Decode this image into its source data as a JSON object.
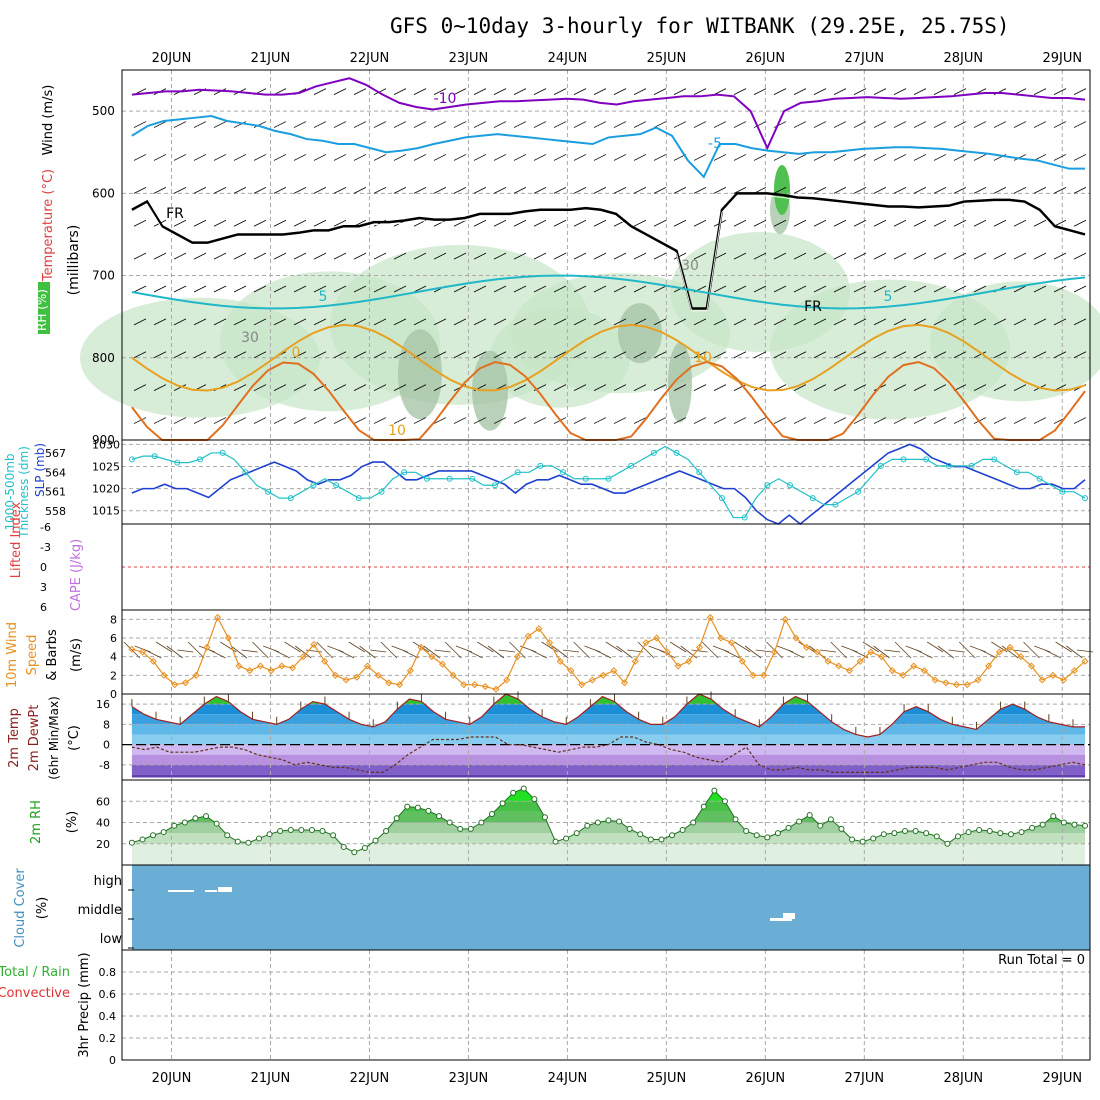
{
  "title": "GFS 0~10day 3-hourly for WITBANK (29.25E, 25.75S)",
  "x_axis": {
    "tick_labels": [
      "20JUN",
      "21JUN",
      "22JUN",
      "23JUN",
      "24JUN",
      "25JUN",
      "26JUN",
      "27JUN",
      "28JUN",
      "29JUN"
    ],
    "range_days": [
      19.5,
      29.28
    ]
  },
  "colors": {
    "rh_green": "#c8e6c8",
    "temp_purple": "#8000c0",
    "temp_blue": "#1a9ee0",
    "temp_cyan": "#20b8c8",
    "temp_orange": "#e8a020",
    "temp_darkorange": "#e07020",
    "temp_red": "#e02080",
    "freezing": "#000000",
    "slp": "#2040d0",
    "thickness": "#20c0c8",
    "wind10m": "#e89020",
    "cloud": "#6aaed6",
    "rh2m": "#40c040"
  },
  "chart_data": [
    {
      "type": "heatmap",
      "panel": "upper-air",
      "yaxis_label": "(millibars)",
      "legend_labels": [
        "RH (%)",
        "Temperature (°C)",
        "Wind (m/s)"
      ],
      "y_ticks": [
        500,
        600,
        700,
        800,
        900
      ],
      "ylim": [
        450,
        900
      ],
      "contour_labels": [
        "-10",
        "-5",
        "FR",
        "FR",
        "5",
        "5",
        "10",
        "10",
        "30",
        "30",
        "0"
      ],
      "freezing_level_mb": [
        620,
        610,
        640,
        650,
        660,
        660,
        655,
        650,
        650,
        650,
        650,
        648,
        645,
        645,
        640,
        640,
        635,
        635,
        633,
        630,
        632,
        632,
        630,
        625,
        625,
        625,
        622,
        620,
        620,
        620,
        618,
        620,
        625,
        640,
        650,
        660,
        670,
        740,
        740,
        620,
        600,
        600,
        600,
        602,
        605,
        606,
        608,
        610,
        612,
        614,
        616,
        616,
        617,
        616,
        615,
        610,
        609,
        608,
        608,
        610,
        620,
        640,
        645,
        650
      ],
      "minus5_level_mb": [
        530,
        518,
        512,
        510,
        508,
        506,
        512,
        515,
        518,
        524,
        528,
        534,
        536,
        540,
        540,
        545,
        550,
        548,
        545,
        540,
        536,
        532,
        530,
        528,
        530,
        532,
        534,
        536,
        538,
        540,
        532,
        530,
        528,
        520,
        530,
        560,
        580,
        540,
        540,
        545,
        548,
        550,
        552,
        550,
        550,
        548,
        546,
        545,
        544,
        544,
        545,
        546,
        548,
        550,
        552,
        555,
        558,
        560,
        565,
        570,
        570
      ],
      "minus10_level_mb": [
        480,
        478,
        476,
        476,
        474,
        475,
        476,
        478,
        480,
        480,
        478,
        470,
        465,
        460,
        468,
        480,
        490,
        495,
        498,
        495,
        492,
        490,
        488,
        488,
        487,
        486,
        485,
        486,
        490,
        492,
        488,
        486,
        484,
        482,
        482,
        480,
        482,
        500,
        545,
        500,
        490,
        488,
        485,
        484,
        483,
        484,
        485,
        484,
        483,
        482,
        480,
        478,
        478,
        480,
        482,
        484,
        484,
        486
      ]
    },
    {
      "type": "line",
      "panel": "slp-thickness",
      "y_labels": [
        "1000-500mb",
        "Thickness (dm)",
        "SLP (mb)"
      ],
      "left_ticks": [
        558,
        561,
        564,
        567
      ],
      "right_ticks": [
        1015,
        1020,
        1025,
        1030
      ],
      "series": [
        {
          "name": "SLP (mb)",
          "values": [
            1019,
            1020,
            1020,
            1021,
            1020,
            1020,
            1019,
            1018,
            1020,
            1022,
            1023,
            1024,
            1025,
            1026,
            1025,
            1024,
            1022,
            1021,
            1022,
            1022,
            1023,
            1025,
            1026,
            1026,
            1024,
            1022,
            1022,
            1023,
            1024,
            1024,
            1024,
            1024,
            1023,
            1022,
            1021,
            1019,
            1021,
            1022,
            1022,
            1023,
            1022,
            1021,
            1021,
            1020,
            1019,
            1019,
            1020,
            1021,
            1022,
            1023,
            1024,
            1023,
            1022,
            1021,
            1020,
            1020,
            1018,
            1015,
            1013,
            1012,
            1014,
            1012,
            1014,
            1016,
            1018,
            1020,
            1022,
            1024,
            1026,
            1028,
            1029,
            1030,
            1029,
            1027,
            1026,
            1025,
            1025,
            1024,
            1023,
            1022,
            1021,
            1020,
            1020,
            1021,
            1021,
            1020,
            1020,
            1022
          ]
        },
        {
          "name": "1000-500mb Thickness (dm)",
          "values": [
            566,
            566.5,
            566.5,
            566,
            565.5,
            565.5,
            566,
            567,
            567,
            566,
            564,
            562,
            561,
            560,
            560,
            561,
            562,
            563,
            562,
            561,
            560,
            560,
            561,
            563,
            564,
            564,
            563,
            563,
            563,
            563,
            563,
            562,
            562,
            563,
            564,
            564,
            565,
            565,
            564,
            563,
            563,
            563,
            563,
            564,
            565,
            566,
            567,
            568,
            567,
            566,
            564,
            562,
            560,
            557,
            557,
            560,
            562,
            563,
            562,
            561,
            560,
            559,
            559,
            560,
            561,
            563,
            565,
            566,
            566,
            566,
            566,
            565,
            565,
            565,
            565,
            566,
            566,
            565,
            564,
            564,
            563,
            562,
            561,
            561,
            560
          ]
        }
      ]
    },
    {
      "type": "line",
      "panel": "cape-li",
      "y_labels": [
        "Lifted Index",
        "CAPE (J/kg)"
      ],
      "left_ticks": [
        "-6",
        "-3",
        "0",
        "3",
        "6"
      ],
      "values": []
    },
    {
      "type": "line",
      "panel": "wind10m",
      "y_labels": [
        "10m Wind",
        "Speed",
        "& Barbs",
        "(m/s)"
      ],
      "y_ticks": [
        0,
        2,
        4,
        6,
        8
      ],
      "ylim": [
        0,
        9
      ],
      "series": [
        {
          "name": "Speed",
          "values": [
            4.8,
            4.5,
            3.5,
            2.0,
            1.0,
            1.2,
            2.0,
            5.0,
            8.2,
            6.0,
            3.0,
            2.5,
            3.0,
            2.5,
            3.0,
            2.8,
            4.0,
            5.3,
            3.5,
            2.0,
            1.5,
            1.8,
            3.0,
            2.0,
            1.2,
            1.0,
            2.5,
            5.0,
            4.0,
            3.2,
            2.0,
            1.0,
            1.0,
            0.8,
            0.5,
            1.5,
            4.0,
            6.2,
            7.0,
            5.5,
            3.5,
            2.5,
            1.0,
            1.5,
            2.0,
            2.5,
            1.2,
            3.5,
            5.5,
            6.0,
            4.5,
            3.0,
            3.5,
            5.0,
            8.2,
            6.0,
            5.5,
            3.5,
            2.0,
            2.0,
            4.5,
            8.0,
            6.0,
            5.0,
            4.5,
            3.5,
            3.0,
            2.5,
            3.5,
            4.5,
            4.0,
            2.5,
            2.0,
            3.0,
            2.5,
            1.5,
            1.2,
            1.0,
            1.0,
            1.5,
            3.0,
            4.5,
            5.0,
            4.0,
            3.0,
            1.5,
            2.0,
            1.5,
            2.5,
            3.5
          ]
        }
      ]
    },
    {
      "type": "area",
      "panel": "temp2m",
      "y_labels": [
        "2m Temp",
        "2m DewPt",
        "(6hr Min/Max)",
        "(°C)"
      ],
      "y_ticks": [
        -8,
        0,
        8,
        16
      ],
      "ylim": [
        -14,
        20
      ],
      "series": [
        {
          "name": "2m Temp",
          "values": [
            15,
            12,
            10,
            9,
            8,
            12,
            16,
            19,
            17,
            13,
            10,
            9,
            8,
            10,
            14,
            17,
            16,
            13,
            10,
            8,
            7,
            9,
            14,
            18,
            17,
            13,
            10,
            9,
            8,
            11,
            16,
            20,
            18,
            14,
            11,
            9,
            8,
            11,
            15,
            19,
            17,
            13,
            10,
            8,
            8,
            11,
            16,
            20,
            18,
            14,
            11,
            9,
            7,
            11,
            16,
            19,
            17,
            13,
            9,
            6,
            4,
            3,
            4,
            8,
            13,
            15,
            13,
            10,
            8,
            7,
            6,
            10,
            14,
            16,
            14,
            11,
            9,
            8,
            7,
            7
          ]
        },
        {
          "name": "2m DewPt",
          "values": [
            -1,
            -2,
            -1,
            -3,
            -3,
            -3,
            -2,
            -1,
            -1,
            -2,
            -4,
            -5,
            -6,
            -8,
            -7,
            -8,
            -9,
            -9,
            -10,
            -11,
            -11,
            -8,
            -4,
            -1,
            2,
            2,
            2,
            3,
            3,
            3,
            0,
            0,
            -1,
            -2,
            -3,
            -2,
            -1,
            -1,
            0,
            3,
            3,
            1,
            0,
            -2,
            -3,
            -5,
            -6,
            -7,
            -4,
            -1,
            -8,
            -10,
            -10,
            -9,
            -10,
            -10,
            -11,
            -11,
            -11,
            -11,
            -11,
            -10,
            -9,
            -9,
            -9,
            -10,
            -9,
            -8,
            -7,
            -7,
            -9,
            -10,
            -10,
            -9,
            -8,
            -7,
            -8
          ]
        }
      ]
    },
    {
      "type": "area",
      "panel": "rh2m",
      "y_labels": [
        "2m RH",
        "(%)"
      ],
      "y_ticks": [
        20,
        40,
        60
      ],
      "ylim": [
        0,
        80
      ],
      "series": [
        {
          "name": "2m RH",
          "values": [
            21,
            24,
            28,
            31,
            37,
            40,
            44,
            46,
            39,
            28,
            22,
            21,
            25,
            29,
            32,
            33,
            33,
            33,
            32,
            28,
            17,
            12,
            16,
            23,
            32,
            44,
            55,
            54,
            51,
            46,
            40,
            34,
            34,
            40,
            48,
            58,
            68,
            72,
            62,
            45,
            22,
            25,
            30,
            37,
            40,
            42,
            41,
            34,
            29,
            24,
            24,
            28,
            33,
            40,
            55,
            70,
            60,
            43,
            32,
            28,
            26,
            30,
            35,
            41,
            47,
            37,
            43,
            34,
            24,
            22,
            25,
            29,
            30,
            32,
            32,
            30,
            27,
            20,
            27,
            31,
            33,
            32,
            30,
            29,
            31,
            35,
            38,
            46,
            40,
            38,
            37
          ]
        }
      ]
    },
    {
      "type": "heatmap",
      "panel": "cloud",
      "y_labels": [
        "Cloud Cover",
        "(%)"
      ],
      "row_labels": [
        "high",
        "middle",
        "low"
      ],
      "values": []
    },
    {
      "type": "bar",
      "panel": "precip",
      "y_labels": [
        "Total / Rain",
        "Convective",
        "3hr Precip (mm)"
      ],
      "y_ticks": [
        0,
        0.2,
        0.4,
        0.6,
        0.8
      ],
      "ylim": [
        0,
        1
      ],
      "annotation": "Run Total = 0",
      "values": []
    }
  ]
}
